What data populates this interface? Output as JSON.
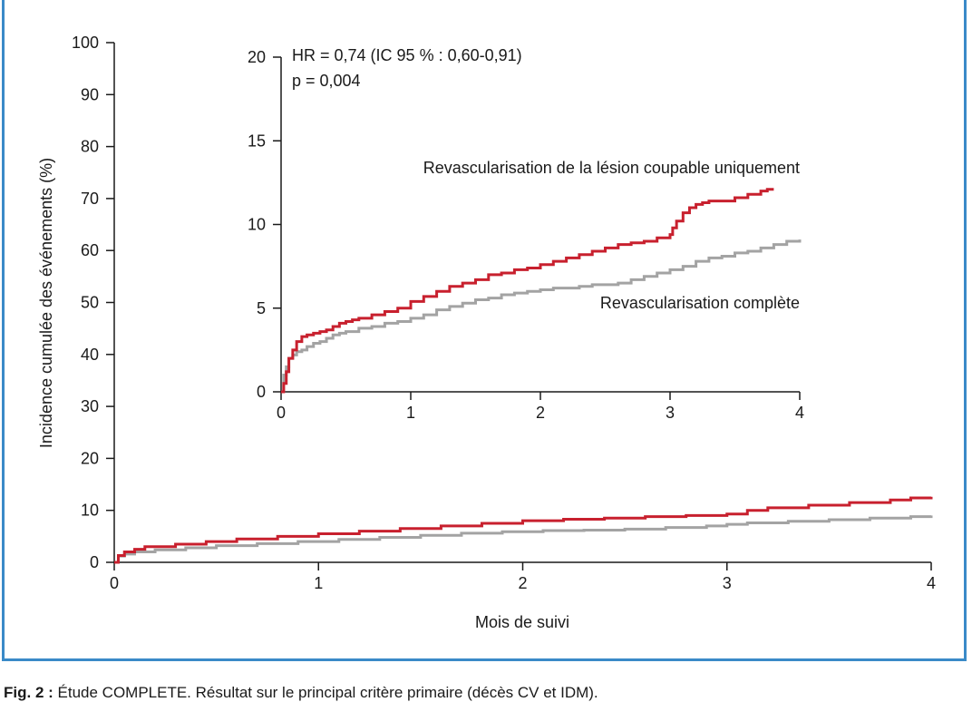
{
  "caption": {
    "label": "Fig. 2 :",
    "text": "Étude COMPLETE. Résultat sur le principal critère primaire (décès CV et IDM)."
  },
  "colors": {
    "culprit": "#c8202e",
    "complete": "#a3a3a3",
    "frame": "#3a8ac8",
    "axis": "#1a1a1a"
  },
  "chart_data": [
    {
      "type": "line",
      "xlabel": "Mois de suivi",
      "ylabel": "Incidence cumulée des événements (%)",
      "xlim": [
        0,
        4
      ],
      "ylim": [
        0,
        100
      ],
      "xticks": [
        "0",
        "1",
        "2",
        "3",
        "4"
      ],
      "yticks": [
        "0",
        "10",
        "20",
        "30",
        "40",
        "50",
        "60",
        "70",
        "80",
        "90",
        "100"
      ],
      "step": true,
      "grid": false,
      "series": [
        {
          "key": "culprit",
          "color": "#c8202e",
          "x": [
            0,
            0.02,
            0.05,
            0.1,
            0.15,
            0.3,
            0.45,
            0.6,
            0.8,
            1.0,
            1.2,
            1.4,
            1.6,
            1.8,
            2.0,
            2.2,
            2.4,
            2.6,
            2.8,
            3.0,
            3.1,
            3.2,
            3.4,
            3.6,
            3.8,
            3.9,
            4.0
          ],
          "y": [
            0,
            1.3,
            2.0,
            2.5,
            3.0,
            3.5,
            4.0,
            4.5,
            5.0,
            5.5,
            6.0,
            6.5,
            7.0,
            7.5,
            8.0,
            8.3,
            8.5,
            8.8,
            9.0,
            9.3,
            10.0,
            10.5,
            11.0,
            11.5,
            12.0,
            12.4,
            12.6
          ]
        },
        {
          "key": "complete",
          "color": "#a3a3a3",
          "x": [
            0,
            0.02,
            0.05,
            0.1,
            0.2,
            0.35,
            0.5,
            0.7,
            0.9,
            1.1,
            1.3,
            1.5,
            1.7,
            1.9,
            2.1,
            2.3,
            2.5,
            2.7,
            2.9,
            3.0,
            3.1,
            3.3,
            3.5,
            3.7,
            3.9,
            4.0
          ],
          "y": [
            0,
            1.2,
            1.6,
            2.0,
            2.4,
            2.8,
            3.2,
            3.6,
            4.0,
            4.4,
            4.8,
            5.2,
            5.6,
            5.9,
            6.1,
            6.2,
            6.4,
            6.7,
            7.0,
            7.3,
            7.6,
            7.9,
            8.2,
            8.5,
            8.8,
            9.0
          ]
        }
      ]
    },
    {
      "type": "line",
      "xlim": [
        0,
        4
      ],
      "ylim": [
        0,
        20
      ],
      "xticks": [
        "0",
        "1",
        "2",
        "3",
        "4"
      ],
      "yticks": [
        "0",
        "5",
        "10",
        "15",
        "20"
      ],
      "step": true,
      "annotations": [
        "HR = 0,74 (IC 95 % : 0,60-0,91)",
        "p = 0,004"
      ],
      "series": [
        {
          "key": "culprit",
          "name": "Revascularisation de la lésion coupable uniquement",
          "color": "#c8202e",
          "x": [
            0,
            0.02,
            0.04,
            0.06,
            0.09,
            0.12,
            0.16,
            0.2,
            0.25,
            0.3,
            0.35,
            0.4,
            0.45,
            0.5,
            0.55,
            0.6,
            0.7,
            0.8,
            0.9,
            1.0,
            1.1,
            1.2,
            1.3,
            1.4,
            1.5,
            1.6,
            1.7,
            1.8,
            1.9,
            2.0,
            2.1,
            2.2,
            2.3,
            2.4,
            2.5,
            2.6,
            2.7,
            2.8,
            2.9,
            3.0,
            3.02,
            3.05,
            3.1,
            3.15,
            3.2,
            3.25,
            3.3,
            3.5,
            3.6,
            3.7,
            3.75,
            3.8
          ],
          "y": [
            0,
            0.5,
            1.2,
            2.0,
            2.5,
            3.0,
            3.3,
            3.4,
            3.5,
            3.6,
            3.7,
            3.9,
            4.1,
            4.2,
            4.3,
            4.4,
            4.6,
            4.8,
            5.0,
            5.4,
            5.7,
            6.0,
            6.3,
            6.5,
            6.7,
            7.0,
            7.1,
            7.3,
            7.4,
            7.6,
            7.8,
            8.0,
            8.2,
            8.4,
            8.6,
            8.8,
            8.9,
            9.0,
            9.2,
            9.4,
            9.8,
            10.2,
            10.7,
            11.0,
            11.2,
            11.3,
            11.4,
            11.6,
            11.8,
            12.0,
            12.1,
            12.1
          ]
        },
        {
          "key": "complete",
          "name": "Revascularisation complète",
          "color": "#a3a3a3",
          "x": [
            0,
            0.02,
            0.04,
            0.06,
            0.09,
            0.12,
            0.16,
            0.2,
            0.25,
            0.3,
            0.35,
            0.4,
            0.45,
            0.5,
            0.6,
            0.7,
            0.8,
            0.9,
            1.0,
            1.1,
            1.2,
            1.3,
            1.4,
            1.5,
            1.6,
            1.7,
            1.8,
            1.9,
            2.0,
            2.1,
            2.2,
            2.3,
            2.4,
            2.5,
            2.6,
            2.7,
            2.8,
            2.9,
            3.0,
            3.1,
            3.2,
            3.3,
            3.4,
            3.5,
            3.6,
            3.7,
            3.8,
            3.9,
            4.0
          ],
          "y": [
            0,
            1.0,
            1.5,
            2.0,
            2.2,
            2.4,
            2.5,
            2.7,
            2.9,
            3.0,
            3.2,
            3.4,
            3.5,
            3.6,
            3.8,
            3.9,
            4.1,
            4.2,
            4.4,
            4.6,
            4.9,
            5.1,
            5.3,
            5.5,
            5.6,
            5.8,
            5.9,
            6.0,
            6.1,
            6.2,
            6.2,
            6.3,
            6.4,
            6.4,
            6.5,
            6.7,
            6.9,
            7.1,
            7.3,
            7.5,
            7.8,
            8.0,
            8.1,
            8.3,
            8.4,
            8.6,
            8.8,
            9.0,
            9.1
          ]
        }
      ]
    }
  ]
}
